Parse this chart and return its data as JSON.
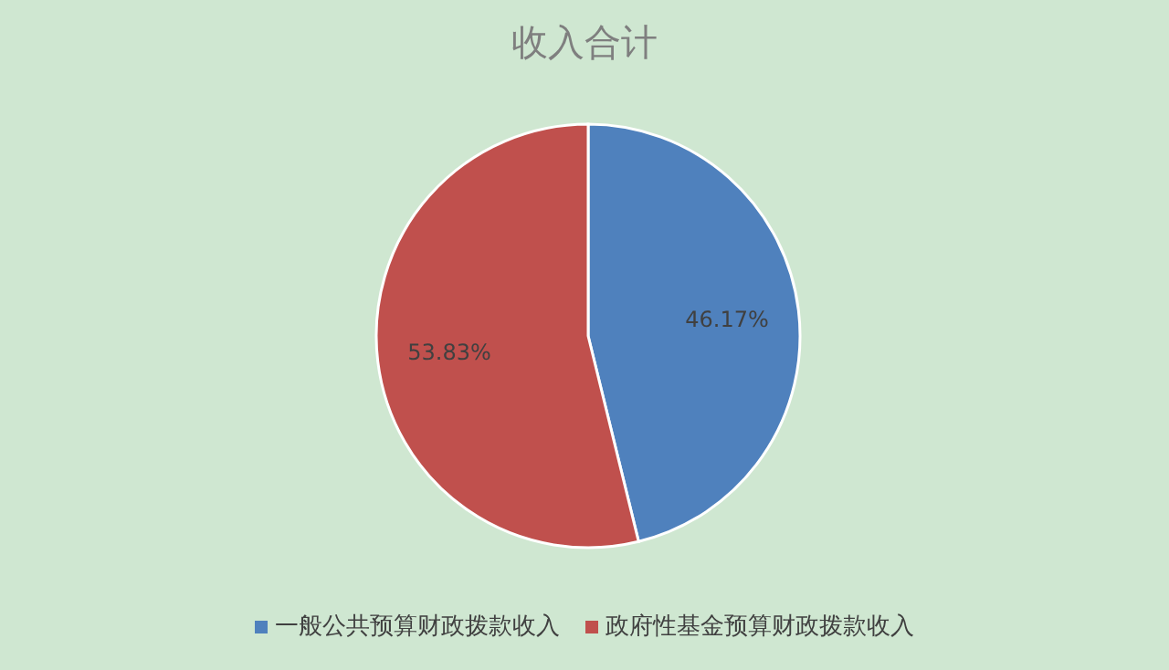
{
  "chart_data": {
    "type": "pie",
    "title": "收入合计",
    "categories": [
      "一般公共预算财政拨款收入",
      "政府性基金预算财政拨款收入"
    ],
    "values": [
      46.17,
      53.83
    ],
    "colors": [
      "#4f81bd",
      "#c0504d"
    ],
    "value_labels": [
      "46.17%",
      "53.83%"
    ],
    "legend": "bottom"
  }
}
